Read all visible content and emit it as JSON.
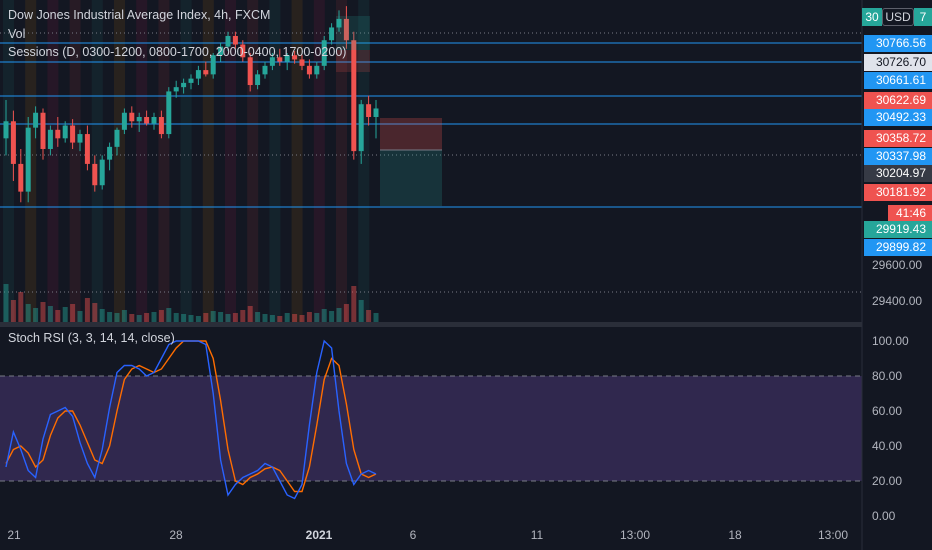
{
  "legend": {
    "title": "Dow Jones Industrial Average Index, 4h, FXCM",
    "vol": "Vol",
    "sessions": "Sessions (D, 0300-1200, 0800-1700, 2000-0400, 1700-0200)",
    "stoch": "Stoch RSI (3, 3, 14, 14, close)"
  },
  "currency_button": "USD",
  "top_badges": {
    "left": "30",
    "right": "7"
  },
  "price_tags": [
    {
      "text": "30766.56",
      "color": "#2196f3"
    },
    {
      "text": "30726.70",
      "color": "#e0e3eb",
      "dark": true
    },
    {
      "text": "30661.61",
      "color": "#2196f3"
    },
    {
      "text": "30622.69",
      "color": "#ef5350"
    },
    {
      "text": "30492.33",
      "color": "#2196f3"
    },
    {
      "text": "30358.72",
      "color": "#ef5350"
    },
    {
      "text": "30337.98",
      "color": "#2196f3"
    },
    {
      "text": "30204.97",
      "color": "#363a45"
    },
    {
      "text": "30181.92",
      "color": "#ef5350"
    },
    {
      "text": "41:46",
      "color": "#ef5350"
    },
    {
      "text": "29919.43",
      "color": "#26a69a"
    },
    {
      "text": "29899.82",
      "color": "#2196f3"
    }
  ],
  "price_axis": [
    "29600.00",
    "29400.00"
  ],
  "stoch_axis": [
    "100.00",
    "80.00",
    "60.00",
    "40.00",
    "20.00",
    "0.00"
  ],
  "time_axis": [
    {
      "label": "21",
      "bold": false
    },
    {
      "label": "28",
      "bold": false
    },
    {
      "label": "2021",
      "bold": true
    },
    {
      "label": "6",
      "bold": false
    },
    {
      "label": "11",
      "bold": false
    },
    {
      "label": "13:00",
      "bold": false
    },
    {
      "label": "18",
      "bold": false
    },
    {
      "label": "13:00",
      "bold": false
    }
  ],
  "colors": {
    "up": "#26a69a",
    "down": "#ef5350",
    "k_line": "#2962ff",
    "d_line": "#ff6d00",
    "band": "#7e57c2",
    "level_line": "#2196f3"
  },
  "chart_data": {
    "type": "candlestick",
    "ohlc": [
      [
        30200,
        30380,
        30120,
        30280
      ],
      [
        30280,
        30330,
        30000,
        30080
      ],
      [
        30080,
        30150,
        29900,
        29950
      ],
      [
        29950,
        30300,
        29900,
        30250
      ],
      [
        30250,
        30350,
        30200,
        30320
      ],
      [
        30320,
        30340,
        30100,
        30150
      ],
      [
        30150,
        30260,
        30120,
        30240
      ],
      [
        30240,
        30300,
        30160,
        30200
      ],
      [
        30200,
        30280,
        30180,
        30260
      ],
      [
        30260,
        30290,
        30150,
        30180
      ],
      [
        30180,
        30240,
        30140,
        30220
      ],
      [
        30220,
        30260,
        30050,
        30080
      ],
      [
        30080,
        30120,
        29950,
        29980
      ],
      [
        29980,
        30120,
        29960,
        30100
      ],
      [
        30100,
        30180,
        30050,
        30160
      ],
      [
        30160,
        30250,
        30120,
        30240
      ],
      [
        30240,
        30340,
        30220,
        30320
      ],
      [
        30320,
        30350,
        30250,
        30280
      ],
      [
        30280,
        30320,
        30230,
        30300
      ],
      [
        30300,
        30330,
        30260,
        30270
      ],
      [
        30270,
        30320,
        30240,
        30300
      ],
      [
        30300,
        30330,
        30200,
        30220
      ],
      [
        30220,
        30440,
        30200,
        30420
      ],
      [
        30420,
        30470,
        30390,
        30440
      ],
      [
        30440,
        30480,
        30410,
        30460
      ],
      [
        30460,
        30500,
        30430,
        30480
      ],
      [
        30480,
        30540,
        30450,
        30520
      ],
      [
        30520,
        30560,
        30490,
        30500
      ],
      [
        30500,
        30600,
        30480,
        30590
      ],
      [
        30590,
        30650,
        30560,
        30630
      ],
      [
        30630,
        30700,
        30610,
        30680
      ],
      [
        30680,
        30700,
        30620,
        30640
      ],
      [
        30640,
        30660,
        30560,
        30580
      ],
      [
        30580,
        30600,
        30420,
        30450
      ],
      [
        30450,
        30520,
        30430,
        30500
      ],
      [
        30500,
        30560,
        30480,
        30540
      ],
      [
        30540,
        30600,
        30520,
        30580
      ],
      [
        30580,
        30620,
        30540,
        30560
      ],
      [
        30560,
        30600,
        30520,
        30590
      ],
      [
        30590,
        30610,
        30550,
        30570
      ],
      [
        30570,
        30590,
        30520,
        30540
      ],
      [
        30540,
        30570,
        30480,
        30500
      ],
      [
        30500,
        30560,
        30480,
        30540
      ],
      [
        30540,
        30680,
        30520,
        30660
      ],
      [
        30660,
        30740,
        30640,
        30720
      ],
      [
        30720,
        30800,
        30700,
        30760
      ],
      [
        30760,
        30820,
        30620,
        30660
      ],
      [
        30660,
        30700,
        30100,
        30140
      ],
      [
        30140,
        30380,
        30080,
        30360
      ],
      [
        30360,
        30400,
        30260,
        30300
      ],
      [
        30300,
        30380,
        30200,
        30340
      ]
    ],
    "volume": [
      38,
      22,
      30,
      18,
      14,
      20,
      16,
      12,
      15,
      18,
      11,
      24,
      19,
      13,
      10,
      9,
      12,
      8,
      7,
      9,
      10,
      12,
      14,
      9,
      8,
      7,
      6,
      9,
      11,
      10,
      8,
      9,
      12,
      16,
      10,
      8,
      7,
      6,
      9,
      8,
      7,
      10,
      9,
      13,
      11,
      14,
      18,
      36,
      22,
      12,
      9
    ],
    "stoch_rsi": {
      "k": [
        28,
        48,
        38,
        26,
        22,
        44,
        58,
        60,
        62,
        57,
        42,
        30,
        22,
        38,
        62,
        82,
        86,
        86,
        84,
        80,
        82,
        90,
        98,
        100,
        100,
        100,
        100,
        98,
        70,
        32,
        12,
        18,
        22,
        24,
        26,
        30,
        28,
        20,
        12,
        10,
        18,
        52,
        82,
        100,
        96,
        60,
        30,
        18,
        24,
        26,
        24
      ],
      "d": [
        30,
        38,
        40,
        36,
        28,
        32,
        46,
        56,
        60,
        60,
        52,
        42,
        32,
        30,
        40,
        60,
        78,
        84,
        86,
        84,
        82,
        84,
        90,
        96,
        100,
        100,
        100,
        100,
        90,
        66,
        38,
        20,
        18,
        22,
        24,
        27,
        28,
        26,
        20,
        14,
        14,
        28,
        52,
        78,
        90,
        86,
        64,
        38,
        24,
        22,
        24
      ]
    },
    "ylim_price": [
      29350,
      30830
    ],
    "ylim_stoch": [
      0,
      100
    ]
  }
}
